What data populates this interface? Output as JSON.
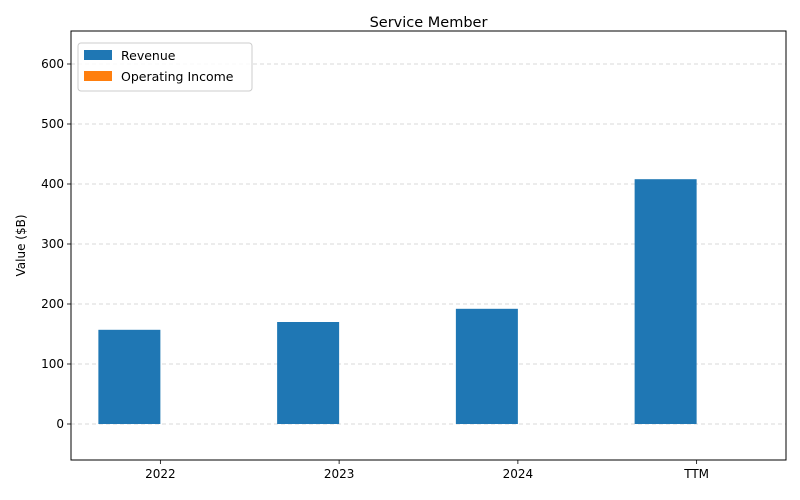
{
  "chart_data": {
    "type": "bar",
    "title": "Service Member",
    "xlabel": "",
    "ylabel": "Value ($B)",
    "categories": [
      "2022",
      "2023",
      "2024",
      "TTM"
    ],
    "series": [
      {
        "name": "Revenue",
        "values": [
          157,
          170,
          192,
          408
        ],
        "color": "#1f77b4"
      },
      {
        "name": "Operating Income",
        "values": [
          0,
          0,
          0,
          0
        ],
        "color": "#ff7f0e"
      }
    ],
    "ylim": [
      -60,
      655
    ],
    "yticks": [
      0,
      100,
      200,
      300,
      400,
      500,
      600
    ],
    "grid": true,
    "legend": "top-left"
  }
}
